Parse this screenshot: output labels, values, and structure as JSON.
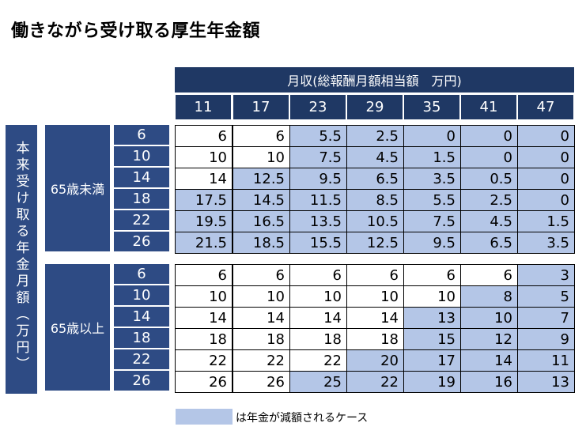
{
  "title": "働きながら受け取る厚生年金額",
  "header": {
    "main": "月収(総報酬月額相当額　万円)",
    "columns": [
      "11",
      "17",
      "23",
      "29",
      "35",
      "41",
      "47"
    ]
  },
  "side_label": "本来受け取る年金月額（万円）",
  "colors": {
    "header": "#1f3864",
    "row_header": "#2e4b84",
    "reduced": "#b4c6e7"
  },
  "groups": [
    {
      "label": "65歳未満",
      "rows": [
        {
          "label": "6",
          "values": [
            "6",
            "6",
            "5.5",
            "2.5",
            "0",
            "0",
            "0"
          ],
          "reduced": [
            false,
            false,
            true,
            true,
            true,
            true,
            true
          ]
        },
        {
          "label": "10",
          "values": [
            "10",
            "10",
            "7.5",
            "4.5",
            "1.5",
            "0",
            "0"
          ],
          "reduced": [
            false,
            false,
            true,
            true,
            true,
            true,
            true
          ]
        },
        {
          "label": "14",
          "values": [
            "14",
            "12.5",
            "9.5",
            "6.5",
            "3.5",
            "0.5",
            "0"
          ],
          "reduced": [
            false,
            true,
            true,
            true,
            true,
            true,
            true
          ]
        },
        {
          "label": "18",
          "values": [
            "17.5",
            "14.5",
            "11.5",
            "8.5",
            "5.5",
            "2.5",
            "0"
          ],
          "reduced": [
            true,
            true,
            true,
            true,
            true,
            true,
            true
          ]
        },
        {
          "label": "22",
          "values": [
            "19.5",
            "16.5",
            "13.5",
            "10.5",
            "7.5",
            "4.5",
            "1.5"
          ],
          "reduced": [
            true,
            true,
            true,
            true,
            true,
            true,
            true
          ]
        },
        {
          "label": "26",
          "values": [
            "21.5",
            "18.5",
            "15.5",
            "12.5",
            "9.5",
            "6.5",
            "3.5"
          ],
          "reduced": [
            true,
            true,
            true,
            true,
            true,
            true,
            true
          ]
        }
      ]
    },
    {
      "label": "65歳以上",
      "rows": [
        {
          "label": "6",
          "values": [
            "6",
            "6",
            "6",
            "6",
            "6",
            "6",
            "3"
          ],
          "reduced": [
            false,
            false,
            false,
            false,
            false,
            false,
            true
          ]
        },
        {
          "label": "10",
          "values": [
            "10",
            "10",
            "10",
            "10",
            "10",
            "8",
            "5"
          ],
          "reduced": [
            false,
            false,
            false,
            false,
            false,
            true,
            true
          ]
        },
        {
          "label": "14",
          "values": [
            "14",
            "14",
            "14",
            "14",
            "13",
            "10",
            "7"
          ],
          "reduced": [
            false,
            false,
            false,
            false,
            true,
            true,
            true
          ]
        },
        {
          "label": "18",
          "values": [
            "18",
            "18",
            "18",
            "18",
            "15",
            "12",
            "9"
          ],
          "reduced": [
            false,
            false,
            false,
            false,
            true,
            true,
            true
          ]
        },
        {
          "label": "22",
          "values": [
            "22",
            "22",
            "22",
            "20",
            "17",
            "14",
            "11"
          ],
          "reduced": [
            false,
            false,
            false,
            true,
            true,
            true,
            true
          ]
        },
        {
          "label": "26",
          "values": [
            "26",
            "26",
            "25",
            "22",
            "19",
            "16",
            "13"
          ],
          "reduced": [
            false,
            false,
            true,
            true,
            true,
            true,
            true
          ]
        }
      ]
    }
  ],
  "legend": "は年金が減額されるケース"
}
